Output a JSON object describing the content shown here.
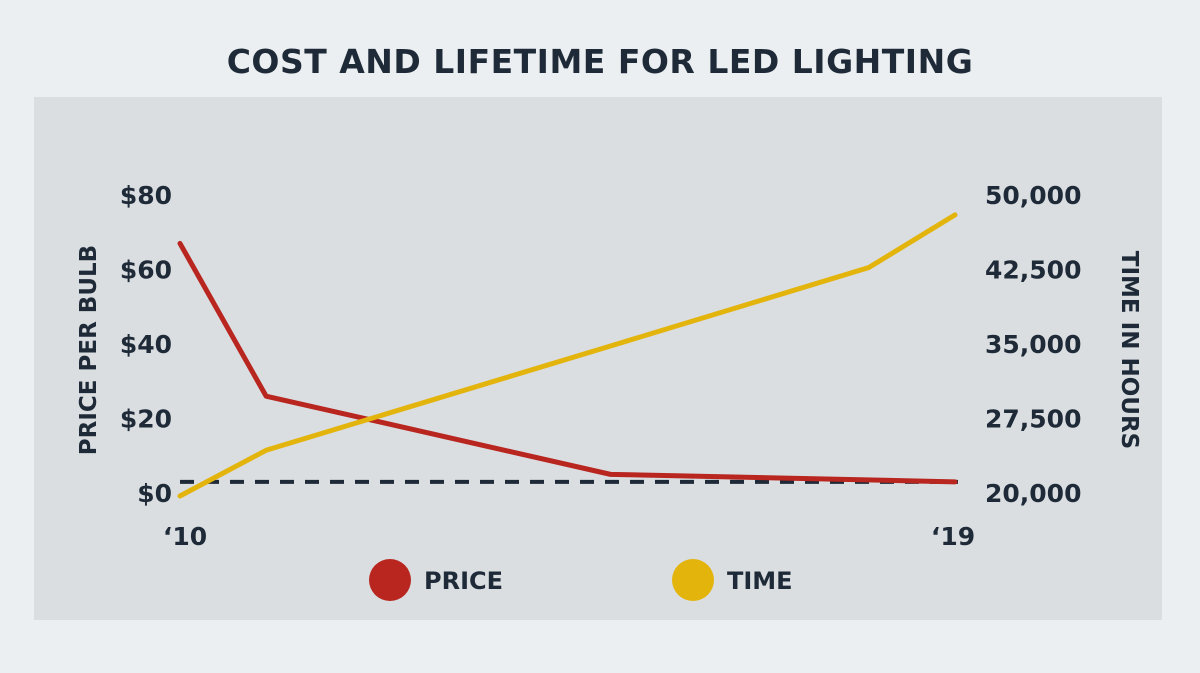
{
  "chart_data": {
    "type": "line",
    "title": "COST AND LIFETIME FOR LED LIGHTING",
    "x_ticks": [
      "‘10",
      "‘19"
    ],
    "x": [
      2010,
      2011,
      2015,
      2018,
      2019
    ],
    "y_left": {
      "label": "PRICE PER BULB",
      "range": [
        0,
        80
      ],
      "ticks": [
        "$80",
        "$60",
        "$40",
        "$20",
        "$0"
      ],
      "tick_values": [
        80,
        60,
        40,
        20,
        0
      ]
    },
    "y_right": {
      "label": "TIME IN HOURS",
      "range": [
        20000,
        50000
      ],
      "ticks": [
        "50,000",
        "42,500",
        "35,000",
        "27,500",
        "20,000"
      ],
      "tick_values": [
        50000,
        42500,
        35000,
        27500,
        20000
      ]
    },
    "baseline_dashed": {
      "axis": "left",
      "value": 3
    },
    "series": [
      {
        "name": "PRICE",
        "axis": "left",
        "color": "#b8261f",
        "points": [
          [
            2010,
            67
          ],
          [
            2011,
            26
          ],
          [
            2015,
            5
          ],
          [
            2019,
            3
          ]
        ]
      },
      {
        "name": "TIME",
        "axis": "right",
        "color": "#e3b40c",
        "points": [
          [
            2010,
            19700
          ],
          [
            2011,
            24300
          ],
          [
            2015,
            34800
          ],
          [
            2018,
            42700
          ],
          [
            2019,
            48000
          ]
        ]
      }
    ],
    "legend": {
      "position": "bottom-center"
    }
  }
}
